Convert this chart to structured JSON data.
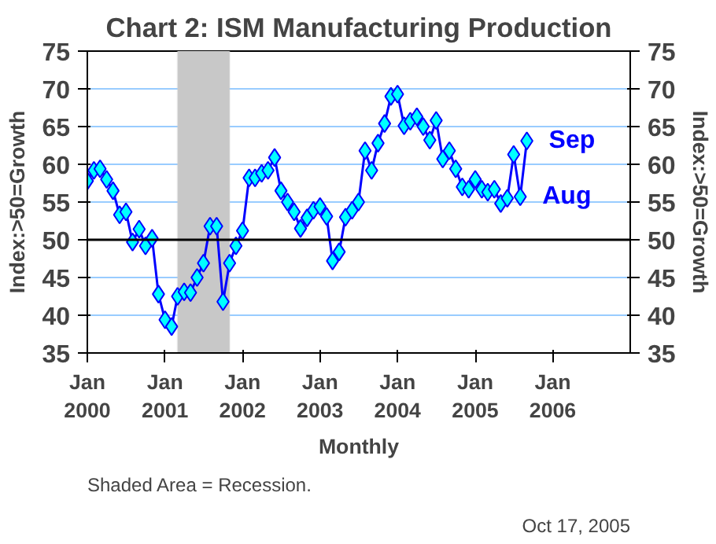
{
  "chart_data": {
    "type": "line",
    "title": "Chart 2: ISM Manufacturing Production",
    "xlabel": "Monthly",
    "ylabel": "Index:>50=Growth",
    "y2label": "Index:>50=Growth",
    "x": [
      "2000-01",
      "2000-02",
      "2000-03",
      "2000-04",
      "2000-05",
      "2000-06",
      "2000-07",
      "2000-08",
      "2000-09",
      "2000-10",
      "2000-11",
      "2000-12",
      "2001-01",
      "2001-02",
      "2001-03",
      "2001-04",
      "2001-05",
      "2001-06",
      "2001-07",
      "2001-08",
      "2001-09",
      "2001-10",
      "2001-11",
      "2001-12",
      "2002-01",
      "2002-02",
      "2002-03",
      "2002-04",
      "2002-05",
      "2002-06",
      "2002-07",
      "2002-08",
      "2002-09",
      "2002-10",
      "2002-11",
      "2002-12",
      "2003-01",
      "2003-02",
      "2003-03",
      "2003-04",
      "2003-05",
      "2003-06",
      "2003-07",
      "2003-08",
      "2003-09",
      "2003-10",
      "2003-11",
      "2003-12",
      "2004-01",
      "2004-02",
      "2004-03",
      "2004-04",
      "2004-05",
      "2004-06",
      "2004-07",
      "2004-08",
      "2004-09",
      "2004-10",
      "2004-11",
      "2004-12",
      "2005-01",
      "2005-02",
      "2005-03",
      "2005-04",
      "2005-05",
      "2005-06",
      "2005-07",
      "2005-08",
      "2005-09"
    ],
    "series": [
      {
        "color": "#0000ff",
        "values": [
          57.8,
          59.2,
          59.4,
          58.0,
          56.5,
          53.3,
          53.7,
          49.7,
          51.4,
          49.2,
          50.2,
          42.8,
          39.4,
          38.5,
          42.5,
          43.1,
          43.0,
          45.0,
          46.9,
          51.8,
          51.8,
          41.8,
          46.9,
          49.2,
          51.2,
          58.2,
          58.2,
          58.8,
          59.2,
          60.9,
          56.5,
          55.0,
          53.7,
          51.5,
          52.9,
          53.9,
          54.4,
          53.1,
          47.2,
          48.4,
          53.0,
          53.9,
          55.0,
          61.8,
          59.2,
          62.8,
          65.4,
          69.0,
          69.3,
          65.1,
          65.7,
          66.3,
          65.0,
          63.2,
          65.8,
          60.7,
          61.8,
          59.4,
          57.0,
          56.7,
          58.0,
          56.7,
          56.3,
          56.7,
          54.8,
          55.5,
          61.3,
          55.7,
          63.1
        ]
      }
    ],
    "marker": "diamond",
    "xlim": [
      "2000-01",
      "2007-01"
    ],
    "xticks": [
      {
        "value": "2000-01",
        "label": "Jan\n2000"
      },
      {
        "value": "2001-01",
        "label": "Jan\n2001"
      },
      {
        "value": "2002-01",
        "label": "Jan\n2002"
      },
      {
        "value": "2003-01",
        "label": "Jan\n2003"
      },
      {
        "value": "2004-01",
        "label": "Jan\n2004"
      },
      {
        "value": "2005-01",
        "label": "Jan\n2005"
      },
      {
        "value": "2006-01",
        "label": "Jan\n2006"
      }
    ],
    "ylim": [
      35,
      75
    ],
    "yticks": [
      35,
      40,
      45,
      50,
      55,
      60,
      65,
      70,
      75
    ],
    "y2lim": [
      35,
      75
    ],
    "y2ticks": [
      35,
      40,
      45,
      50,
      55,
      60,
      65,
      70,
      75
    ],
    "grid": "y",
    "bands": [
      {
        "axis": "x",
        "from": "2001-03",
        "to": "2001-11",
        "color": "#c8c8c8"
      }
    ],
    "ref_lines": [
      {
        "axis": "y",
        "value": 50,
        "color": "#000000"
      }
    ],
    "annotations": [
      {
        "text": "Sep",
        "x": "2005-09",
        "y": 63.1
      },
      {
        "text": "Aug",
        "x": "2005-08",
        "y": 55.7
      },
      "Shaded Area  = Recession.",
      "Oct 17, 2005"
    ]
  }
}
